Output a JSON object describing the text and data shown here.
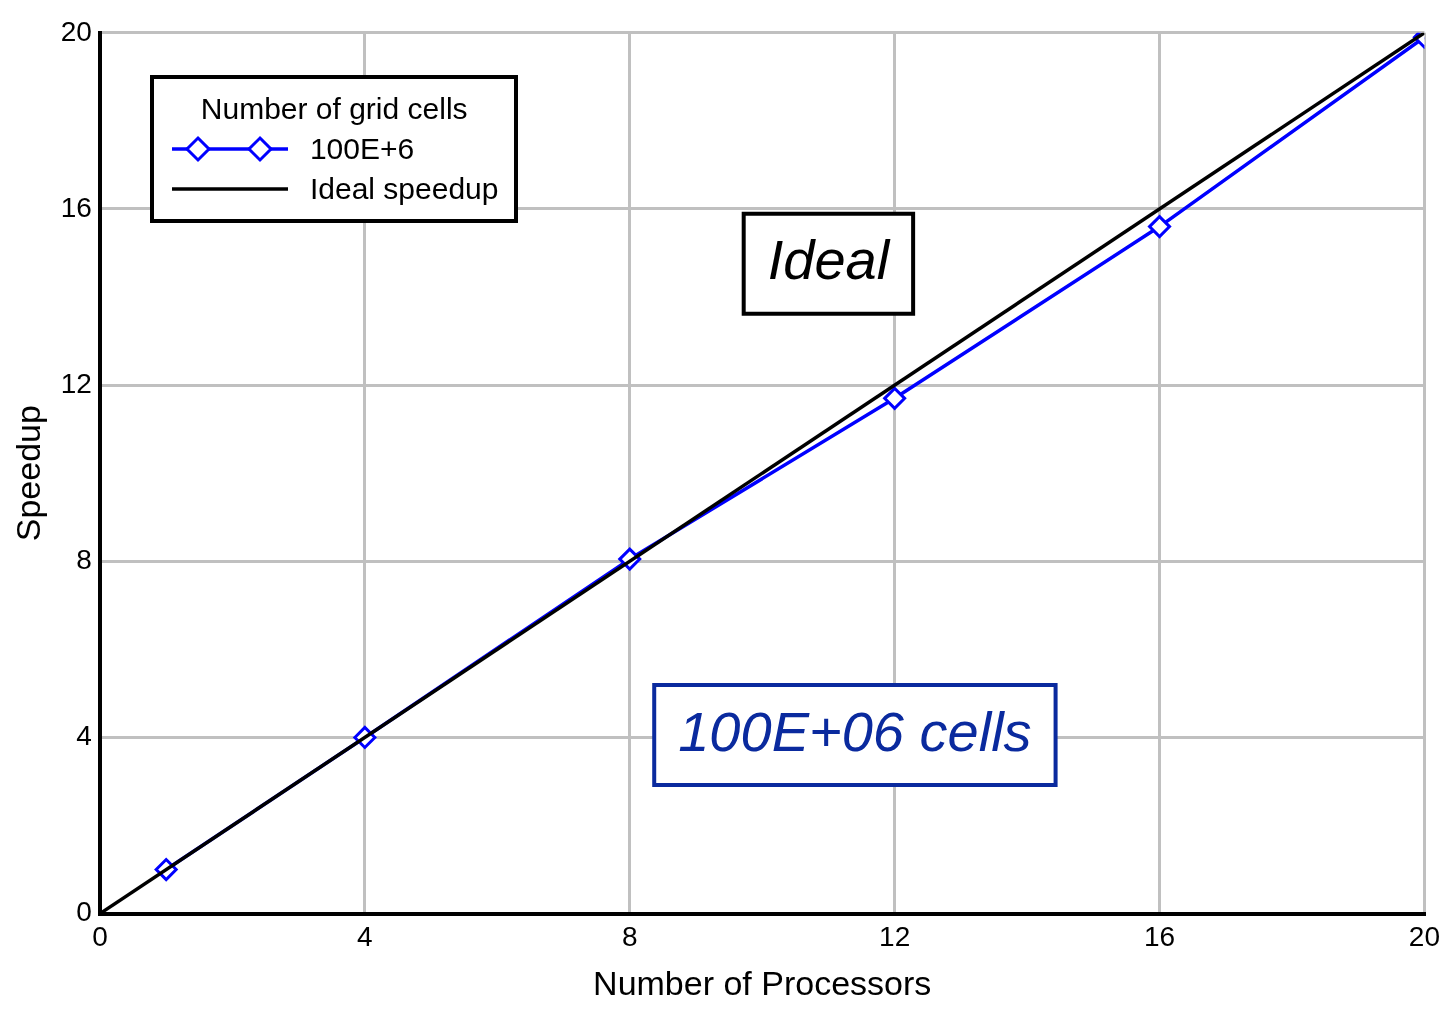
{
  "chart_data": {
    "type": "line",
    "xlabel": "Number of Processors",
    "ylabel": "Speedup",
    "legend_title": "Number of grid cells",
    "series": [
      {
        "name": "100E+6",
        "color": "#0000ff",
        "x": [
          1,
          4,
          8,
          12,
          16,
          20
        ],
        "values": [
          1,
          4,
          8.05,
          11.7,
          15.6,
          19.9
        ],
        "marker": "diamond"
      },
      {
        "name": "Ideal speedup",
        "color": "#000000",
        "x": [
          0,
          20
        ],
        "values": [
          0,
          20
        ],
        "marker": "none"
      }
    ],
    "annotations": [
      "Ideal",
      "100E+06 cells"
    ],
    "xlim": [
      0,
      20
    ],
    "ylim": [
      0,
      20
    ],
    "xticks": [
      0,
      4,
      8,
      12,
      16,
      20
    ],
    "yticks": [
      0,
      4,
      8,
      12,
      16,
      20
    ],
    "grid": true,
    "legend": "top left",
    "line_style": "solid"
  }
}
